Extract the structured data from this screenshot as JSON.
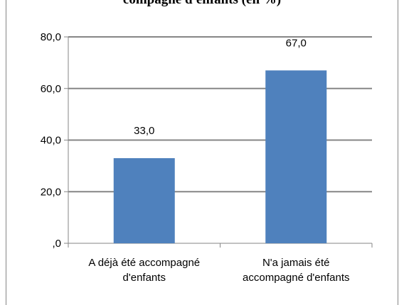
{
  "chart_data": {
    "type": "bar",
    "title": "compagné d'enfants (en %)",
    "categories": [
      [
        "A déjà été accompagné",
        "d'enfants"
      ],
      [
        "N'a jamais  été",
        "accompagné d'enfants"
      ]
    ],
    "values": [
      33.0,
      67.0
    ],
    "data_labels": [
      "33,0",
      "67,0"
    ],
    "ylim": [
      0,
      80
    ],
    "y_ticks": [
      0,
      20,
      40,
      60,
      80
    ],
    "y_tick_labels": [
      ",0",
      "20,0",
      "40,0",
      "60,0",
      "80,0"
    ],
    "grid": true,
    "bar_color": "#4f81bd",
    "grid_color": "#868686"
  }
}
